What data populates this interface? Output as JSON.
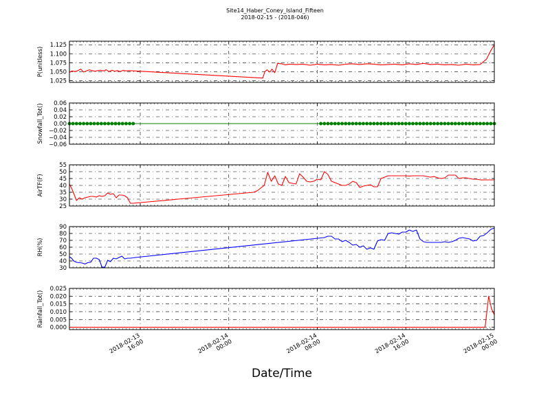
{
  "title": "Site14_Haber_Coney_Island_Fifteen",
  "subtitle": "2018-02-15 - (2018-046)",
  "xlabel": "Date/Time",
  "chart_data": [
    {
      "type": "line",
      "ylabel": "P(unitless)",
      "ylim": [
        1.02,
        1.135
      ],
      "yticks": [
        "1.025",
        "1.050",
        "1.075",
        "1.100",
        "1.125"
      ],
      "grid": true,
      "series": [
        {
          "color": "#ff0000",
          "marker": "none",
          "x": [
            0,
            0.4,
            0.8,
            1.2,
            1.6,
            2.0,
            2.4,
            2.8,
            3.2,
            3.6,
            4.0,
            4.4,
            4.8,
            5.2,
            5.6,
            6.0,
            6.4,
            6.8,
            7.2,
            7.6,
            8.0,
            8.4,
            27.3,
            27.6,
            27.9,
            28.3,
            28.6,
            29.0,
            29.4,
            29.9,
            30.5,
            31.0,
            32.0,
            33.0,
            34.0,
            35.0,
            36.0,
            37.0,
            38.0,
            39.0,
            40.0,
            41.0,
            42.0,
            43.0,
            44.0,
            45.0,
            46.0,
            47.0,
            48.0,
            49.0,
            50.0,
            51.0,
            52.0,
            53.0,
            54.0,
            55.0,
            56.0,
            57.0,
            58.0,
            58.9,
            59.4,
            60.0
          ],
          "y": [
            1.048,
            1.052,
            1.05,
            1.053,
            1.057,
            1.049,
            1.052,
            1.055,
            1.053,
            1.051,
            1.053,
            1.054,
            1.052,
            1.055,
            1.05,
            1.054,
            1.051,
            1.053,
            1.05,
            1.054,
            1.052,
            1.053,
            1.032,
            1.05,
            1.055,
            1.049,
            1.057,
            1.047,
            1.073,
            1.072,
            1.069,
            1.071,
            1.07,
            1.071,
            1.068,
            1.071,
            1.069,
            1.07,
            1.068,
            1.071,
            1.072,
            1.07,
            1.072,
            1.071,
            1.069,
            1.07,
            1.071,
            1.069,
            1.072,
            1.07,
            1.073,
            1.07,
            1.071,
            1.069,
            1.07,
            1.068,
            1.071,
            1.069,
            1.07,
            1.085,
            1.105,
            1.125
          ]
        }
      ]
    },
    {
      "type": "line",
      "ylabel": "Snowfall_Tot()",
      "ylim": [
        -0.06,
        0.06
      ],
      "yticks": [
        "−0.06",
        "−0.04",
        "−0.02",
        "0.00",
        "0.02",
        "0.04",
        "0.06"
      ],
      "grid": true,
      "series": [
        {
          "color": "#008000",
          "marker": "dot",
          "x": [
            0,
            60
          ],
          "y": [
            0,
            0
          ],
          "marker_ranges": [
            [
              0,
              9.2
            ],
            [
              35.5,
              60
            ]
          ],
          "marker_spacing": 0.5
        }
      ]
    },
    {
      "type": "line",
      "ylabel": "AirTF(F)",
      "ylim": [
        25,
        55
      ],
      "yticks": [
        "25",
        "30",
        "35",
        "40",
        "45",
        "50",
        "55"
      ],
      "grid": true,
      "series": [
        {
          "color": "#ff0000",
          "marker": "none",
          "x": [
            0,
            0.3,
            0.7,
            1.0,
            1.4,
            1.8,
            2.2,
            2.6,
            3.0,
            3.4,
            3.8,
            4.2,
            4.6,
            5.0,
            5.4,
            5.8,
            6.2,
            6.6,
            7.0,
            7.4,
            7.8,
            8.2,
            8.6,
            9.0,
            26.0,
            26.5,
            27.0,
            27.5,
            28.0,
            28.5,
            29.0,
            29.5,
            30.0,
            30.5,
            31.0,
            31.5,
            32.0,
            32.5,
            33.0,
            33.5,
            34.0,
            34.5,
            35.0,
            35.5,
            36.0,
            36.5,
            37.0,
            37.5,
            38.0,
            38.5,
            39.0,
            39.5,
            40.0,
            40.5,
            41.0,
            41.5,
            42.0,
            42.5,
            43.0,
            43.5,
            44.0,
            44.5,
            45.0,
            45.5,
            46.0,
            46.5,
            47.0,
            47.5,
            48.0,
            48.5,
            49.0,
            49.5,
            50.0,
            50.5,
            51.0,
            51.5,
            52.0,
            52.5,
            53.0,
            53.5,
            54.0,
            54.5,
            55.0,
            55.5,
            56.0,
            56.5,
            57.0,
            57.5,
            58.0,
            58.5,
            59.0,
            59.5,
            60.0
          ],
          "y": [
            41,
            38,
            33,
            29,
            31,
            30,
            31,
            31.5,
            32,
            32,
            31.5,
            32.5,
            32,
            32.5,
            34.5,
            33.5,
            34,
            31,
            33,
            33,
            32.5,
            31,
            27,
            27,
            35,
            36,
            38,
            40,
            49.5,
            43,
            47,
            41,
            40,
            46.5,
            42,
            41.5,
            41,
            48.5,
            46,
            43,
            42.5,
            43,
            44.5,
            44,
            50,
            48,
            43,
            42,
            41,
            40,
            40,
            41,
            43,
            42,
            38.5,
            39.5,
            40,
            40.5,
            39,
            39,
            45,
            46,
            47,
            47,
            47,
            47,
            47,
            47,
            46.8,
            47,
            47,
            47,
            47,
            46.5,
            46,
            46.5,
            45.5,
            45,
            45.5,
            47.5,
            47.5,
            47.5,
            45,
            45.5,
            45.5,
            45,
            44.5,
            44.5,
            44,
            44,
            44,
            44,
            44
          ]
        }
      ]
    },
    {
      "type": "line",
      "ylabel": "RH(%)",
      "ylim": [
        30,
        90
      ],
      "yticks": [
        "30",
        "40",
        "50",
        "60",
        "70",
        "80",
        "90"
      ],
      "grid": true,
      "series": [
        {
          "color": "#0000ff",
          "marker": "none",
          "x": [
            0,
            0.3,
            0.6,
            1.0,
            1.4,
            1.8,
            2.2,
            2.6,
            3.0,
            3.4,
            3.8,
            4.2,
            4.6,
            5.0,
            5.4,
            5.8,
            6.2,
            6.6,
            7.0,
            7.4,
            7.8,
            8.2,
            8.6,
            9.0,
            9.3,
            36.0,
            36.5,
            37.0,
            37.5,
            38.0,
            38.5,
            39.0,
            39.5,
            40.0,
            40.5,
            41.0,
            41.5,
            42.0,
            42.5,
            43.0,
            43.5,
            44.0,
            44.5,
            45.0,
            45.5,
            46.0,
            46.5,
            47.0,
            47.5,
            48.0,
            48.5,
            49.0,
            49.5,
            50.0,
            50.5,
            51.0,
            51.5,
            52.0,
            52.5,
            53.0,
            53.5,
            54.0,
            54.5,
            55.0,
            55.5,
            56.0,
            56.5,
            57.0,
            57.5,
            58.0,
            58.5,
            59.0,
            59.5,
            60.0
          ],
          "y": [
            46,
            44,
            40,
            38,
            37.5,
            37,
            35.5,
            37.5,
            38,
            44,
            44,
            42,
            31,
            31,
            41,
            39,
            44,
            43,
            45,
            47,
            43,
            44,
            44,
            44.5,
            45,
            74,
            76,
            76,
            72,
            72,
            68,
            70,
            67,
            63,
            64,
            60,
            62,
            57,
            59,
            57,
            69,
            71,
            70,
            80,
            81,
            80,
            79,
            82,
            82,
            85,
            83,
            85,
            72,
            68,
            67,
            67,
            67,
            67,
            67,
            68,
            67,
            68,
            70,
            73,
            74,
            73,
            72,
            69,
            70,
            76,
            77,
            81,
            86,
            88
          ]
        }
      ]
    },
    {
      "type": "line",
      "ylabel": "Rainfall_Tot()",
      "ylim": [
        -0.0015,
        0.025
      ],
      "yticks": [
        "0.000",
        "0.005",
        "0.010",
        "0.015",
        "0.020",
        "0.025"
      ],
      "grid": true,
      "series": [
        {
          "color": "#ff0000",
          "marker": "none",
          "x": [
            0,
            58.7,
            59.2,
            59.6,
            60.0
          ],
          "y": [
            0,
            0,
            0.02,
            0.012,
            0.008
          ]
        }
      ]
    }
  ],
  "xaxis": {
    "range": [
      0,
      60
    ],
    "ticks": [
      {
        "x": 10,
        "label": [
          "2018-02-13",
          "16:00"
        ]
      },
      {
        "x": 22.5,
        "label": [
          "2018-02-14",
          "00:00"
        ]
      },
      {
        "x": 35,
        "label": [
          "2018-02-14",
          "08:00"
        ]
      },
      {
        "x": 47.5,
        "label": [
          "2018-02-14",
          "16:00"
        ]
      },
      {
        "x": 60,
        "label": [
          "2018-02-15",
          "00:00"
        ]
      }
    ]
  }
}
